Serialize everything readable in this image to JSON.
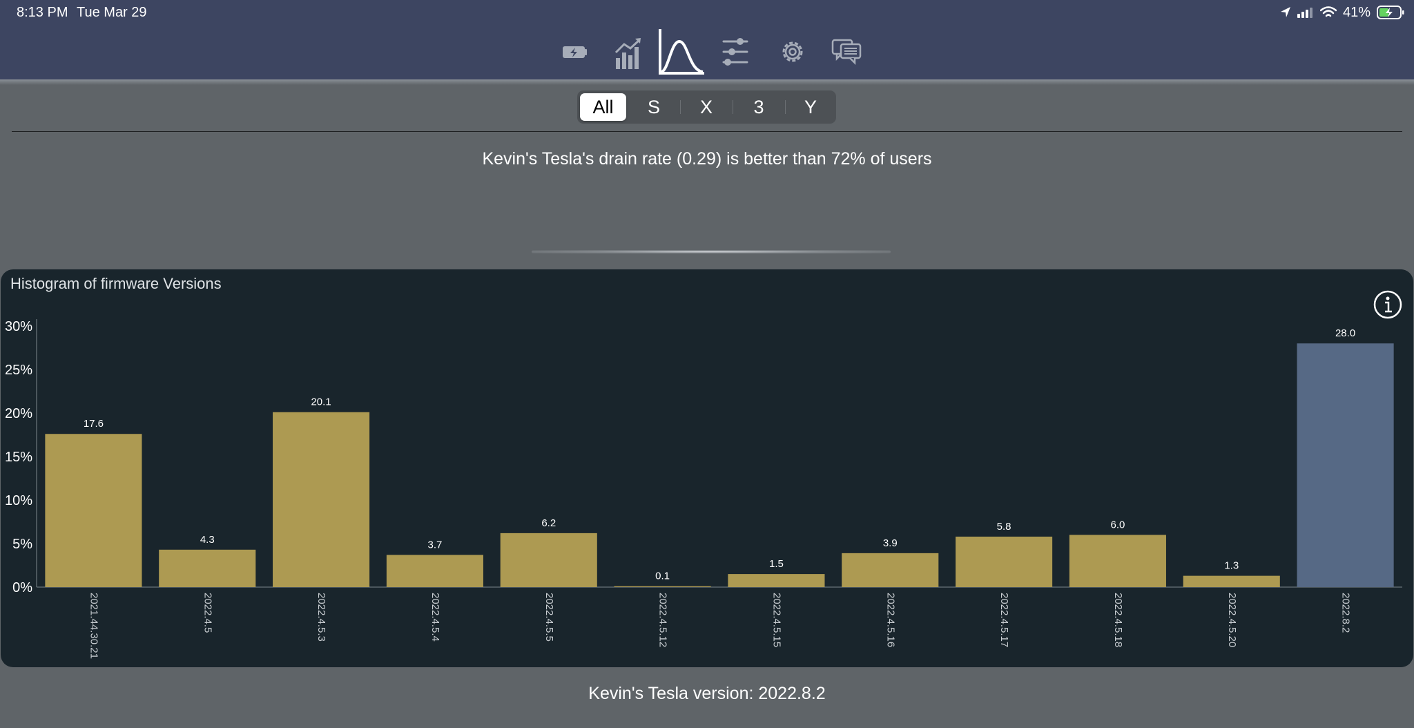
{
  "status_bar": {
    "time": "8:13 PM",
    "date": "Tue Mar 29",
    "battery_percent": "41%"
  },
  "tab_bar": {
    "tabs": [
      {
        "name": "battery-icon",
        "selected": false
      },
      {
        "name": "stats-chart-icon",
        "selected": false
      },
      {
        "name": "distribution-curve-icon",
        "selected": true
      },
      {
        "name": "sliders-icon",
        "selected": false
      },
      {
        "name": "gear-icon",
        "selected": false
      },
      {
        "name": "chat-icon",
        "selected": false
      }
    ]
  },
  "model_filter": {
    "options": [
      "All",
      "S",
      "X",
      "3",
      "Y"
    ],
    "selected": "All"
  },
  "drain_message": "Kevin's Tesla's drain rate (0.29) is better than 72% of users",
  "colors": {
    "bar": "#ad9a52",
    "highlight_bar": "#566985",
    "card_background": "#19252c",
    "top_bar": "#3d4561"
  },
  "chart_data": {
    "type": "bar",
    "title": "Histogram of firmware Versions",
    "categories": [
      "2021.44.30.21",
      "2022.4.5",
      "2022.4.5.3",
      "2022.4.5.4",
      "2022.4.5.5",
      "2022.4.5.12",
      "2022.4.5.15",
      "2022.4.5.16",
      "2022.4.5.17",
      "2022.4.5.18",
      "2022.4.5.20",
      "2022.8.2"
    ],
    "values": [
      17.6,
      4.3,
      20.1,
      3.7,
      6.2,
      0.1,
      1.5,
      3.9,
      5.8,
      6.0,
      1.3,
      28.0
    ],
    "value_labels": [
      "17.6",
      "4.3",
      "20.1",
      "3.7",
      "6.2",
      "0.1",
      "1.5",
      "3.9",
      "5.8",
      "6.0",
      "1.3",
      "28.0"
    ],
    "highlighted_category": "2022.8.2",
    "y_ticks": [
      0,
      5,
      10,
      15,
      20,
      25,
      30
    ],
    "y_tick_labels": [
      "0%",
      "5%",
      "10%",
      "15%",
      "20%",
      "25%",
      "30%"
    ],
    "ylim": [
      0,
      30
    ],
    "xlabel": "",
    "ylabel": ""
  },
  "version_label": "Kevin's Tesla version: 2022.8.2"
}
